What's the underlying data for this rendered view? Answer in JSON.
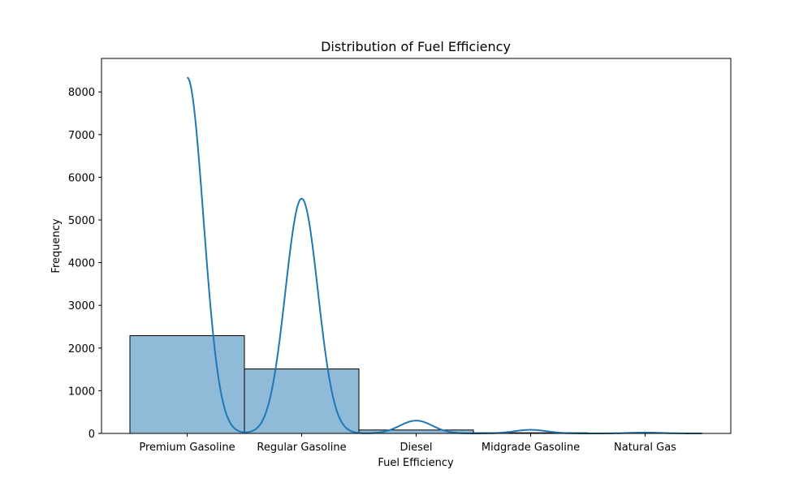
{
  "chart_data": {
    "type": "bar",
    "title": "Distribution of Fuel Efficiency",
    "xlabel": "Fuel Efficiency",
    "ylabel": "Frequency",
    "categories": [
      "Premium Gasoline",
      "Regular Gasoline",
      "Diesel",
      "Midgrade Gasoline",
      "Natural Gas"
    ],
    "values": [
      2290,
      1510,
      80,
      15,
      2
    ],
    "ylim": [
      0,
      8800
    ],
    "yticks": [
      0,
      1000,
      2000,
      3000,
      4000,
      5000,
      6000,
      7000,
      8000
    ],
    "kde_peaks": [
      8340,
      5500,
      300,
      85,
      20
    ],
    "bar_color": "#1f77b4",
    "bar_alpha": 0.5,
    "line_color": "#1f77b4",
    "grid": false,
    "legend": "none"
  }
}
